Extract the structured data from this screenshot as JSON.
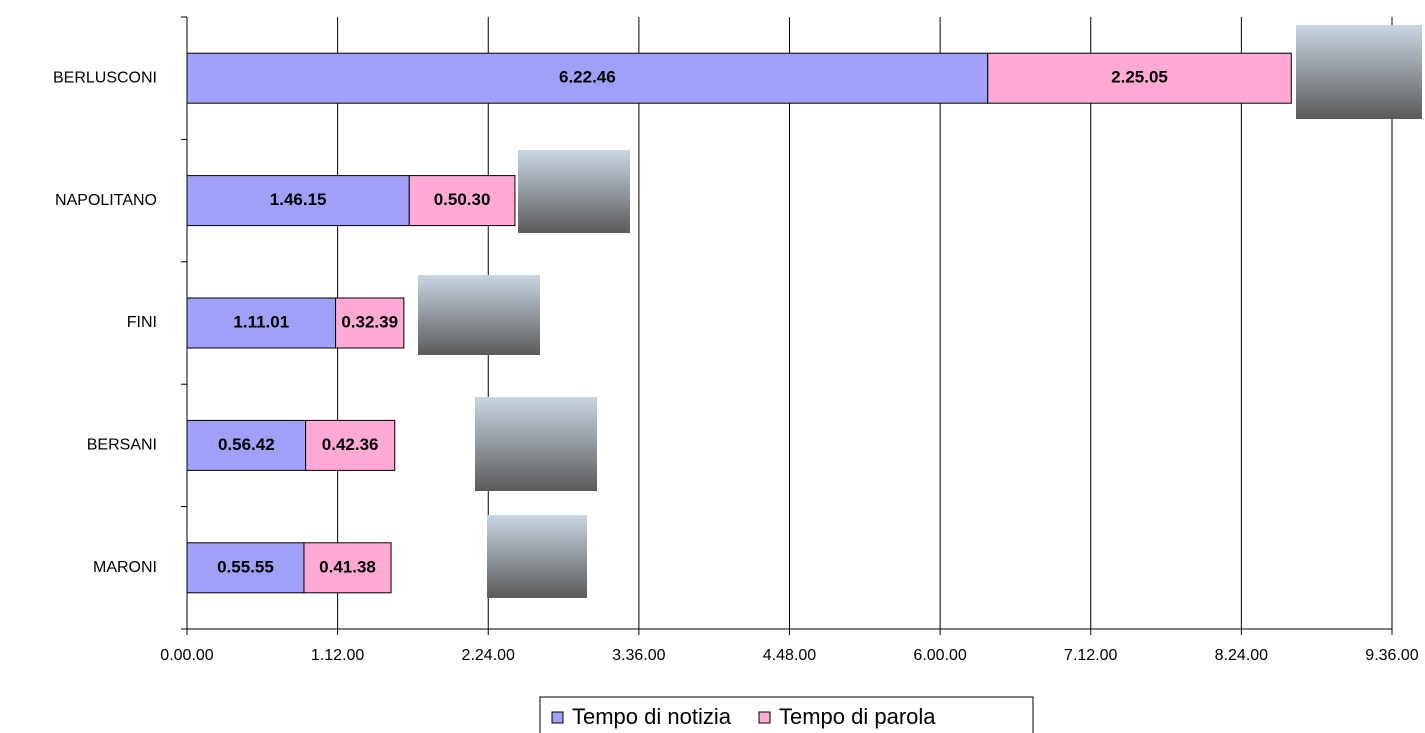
{
  "chart_data": {
    "type": "stacked_bar_horizontal",
    "categories": [
      "BERLUSCONI",
      "NAPOLITANO",
      "FINI",
      "BERSANI",
      "MARONI"
    ],
    "series": [
      {
        "name": "Tempo di notizia",
        "color": "#a0a0f8",
        "values": [
          22966,
          6375,
          4261,
          3402,
          3355
        ],
        "value_labels": [
          "6.22.46",
          "1.46.15",
          "1.11.01",
          "0.56.42",
          "0.55.55"
        ]
      },
      {
        "name": "Tempo di parola",
        "color": "#ffaad5",
        "values": [
          8705,
          3030,
          1959,
          2556,
          2498
        ],
        "value_labels": [
          "2.25.05",
          "0.50.30",
          "0.32.39",
          "0.42.36",
          "0.41.38"
        ]
      }
    ],
    "xlim": [
      0,
      34560
    ],
    "xticks": [
      {
        "value": 0,
        "label": "0.00.00"
      },
      {
        "value": 4320,
        "label": "1.12.00"
      },
      {
        "value": 8640,
        "label": "2.24.00"
      },
      {
        "value": 12960,
        "label": "3.36.00"
      },
      {
        "value": 17280,
        "label": "4.48.00"
      },
      {
        "value": 21600,
        "label": "6.00.00"
      },
      {
        "value": 25920,
        "label": "7.12.00"
      },
      {
        "value": 30240,
        "label": "8.24.00"
      },
      {
        "value": 34560,
        "label": "9.36.00"
      }
    ],
    "grid": true,
    "legend": "bottom"
  }
}
